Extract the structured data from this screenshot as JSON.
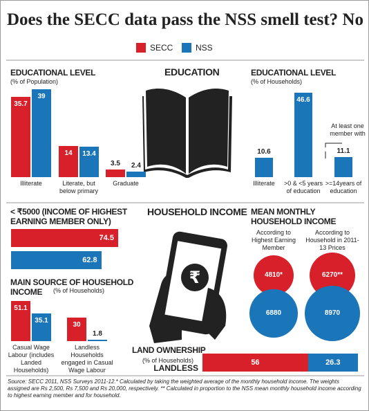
{
  "title": "Does the SECC data pass the NSS smell test? No",
  "legend": [
    {
      "name": "SECC",
      "color": "#d7202a"
    },
    {
      "name": "NSS",
      "color": "#1a75b9"
    }
  ],
  "headings": [
    "EDUCATION",
    "HOUSEHOLD INCOME"
  ],
  "source": "Source: SECC 2011, NSS Surveys 2011-12.* Calculated by taking the weighted average of the monthly household income. The weights assigned are Rs 2,500, Rs 7,500 and Rs 20,000, respectively. ** Calculated in proportion to the NSS mean monthly household income according to highest earning member and for household.",
  "chart_data": [
    {
      "type": "bar",
      "title": "EDUCATIONAL LEVEL",
      "subtitle": "(% of Population)",
      "categories": [
        "Illiterate",
        "Literate, but below primary",
        "Graduate"
      ],
      "series": [
        {
          "color": "#d7202a",
          "values": [
            35.7,
            14,
            3.5
          ]
        },
        {
          "color": "#1a75b9",
          "values": [
            39,
            13.4,
            2.4
          ]
        }
      ]
    },
    {
      "type": "bar",
      "title": "EDUCATIONAL LEVEL",
      "subtitle": "(% of Households)",
      "categories": [
        "Illiterate",
        ">0 & <5 years of education",
        ">=14years of education"
      ],
      "color": "#1a75b9",
      "values": [
        10.6,
        46.6,
        11.1
      ],
      "annotation": "At least one member with"
    },
    {
      "type": "hbar",
      "title": "< ₹5000 (INCOME OF HIGHEST EARNING MEMBER ONLY)",
      "series": [
        {
          "color": "#d7202a",
          "values": [
            74.5
          ]
        },
        {
          "color": "#1a75b9",
          "values": [
            62.8
          ]
        }
      ]
    },
    {
      "type": "bar",
      "title": "MAIN SOURCE OF HOUSEHOLD INCOME",
      "subtitle": "(% of Households)",
      "categories": [
        "Casual Wage Labour (includes Landed Households)",
        "Landless Households engaged in Casual Wage Labour"
      ],
      "series": [
        {
          "color": "#d7202a",
          "values": [
            51.1,
            30
          ]
        },
        {
          "color": "#1a75b9",
          "values": [
            35.1,
            1.8
          ]
        }
      ]
    },
    {
      "type": "bubble",
      "title": "MEAN MONTHLY HOUSEHOLD INCOME",
      "categories": [
        "According to Highest Earning Member",
        "According to Household in 2011-13 Prices"
      ],
      "series": [
        {
          "color": "#d7202a",
          "values": [
            4810,
            6270
          ],
          "value_labels": [
            "4810*",
            "6270**"
          ]
        },
        {
          "color": "#1a75b9",
          "values": [
            6880,
            8970
          ]
        }
      ]
    },
    {
      "type": "stacked-hbar",
      "title": "LAND OWNERSHIP",
      "subtitle": "(% of Households)",
      "categories": [
        "LANDLESS"
      ],
      "series": [
        {
          "color": "#d7202a",
          "values": [
            56
          ]
        },
        {
          "color": "#1a75b9",
          "values": [
            26.3
          ]
        }
      ]
    }
  ]
}
